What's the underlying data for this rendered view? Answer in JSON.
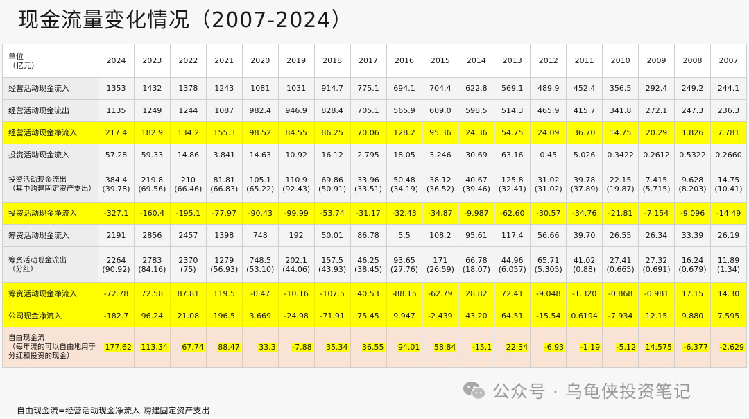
{
  "title": "现金流量变化情况（2007-2024）",
  "table": {
    "unit_label": "单位\n（亿元）",
    "years": [
      "2024",
      "2023",
      "2022",
      "2021",
      "2020",
      "2019",
      "2018",
      "2017",
      "2016",
      "2015",
      "2014",
      "2013",
      "2012",
      "2011",
      "2010",
      "2009",
      "2008",
      "2007"
    ],
    "rows": [
      {
        "label": "经营活动现金流入",
        "style": "norm",
        "values": [
          "1353",
          "1432",
          "1378",
          "1243",
          "1081",
          "1031",
          "914.7",
          "775.1",
          "694.1",
          "704.4",
          "622.8",
          "569.1",
          "489.9",
          "452.4",
          "356.5",
          "292.4",
          "249.2",
          "244.1"
        ]
      },
      {
        "label": "经营活动现金流出",
        "style": "norm",
        "values": [
          "1135",
          "1249",
          "1244",
          "1087",
          "982.4",
          "946.9",
          "828.4",
          "705.1",
          "565.9",
          "609.0",
          "598.5",
          "514.3",
          "465.9",
          "415.7",
          "341.8",
          "272.1",
          "247.3",
          "236.3"
        ]
      },
      {
        "label": "经营活动现金净流入",
        "style": "yellow",
        "values": [
          "217.4",
          "182.9",
          "134.2",
          "155.3",
          "98.52",
          "84.55",
          "86.25",
          "70.06",
          "128.2",
          "95.36",
          "24.36",
          "54.75",
          "24.09",
          "36.70",
          "14.75",
          "20.29",
          "1.826",
          "7.781"
        ]
      },
      {
        "label": "投资活动现金流入",
        "style": "norm",
        "values": [
          "57.28",
          "59.33",
          "14.86",
          "3.841",
          "14.63",
          "10.92",
          "16.12",
          "2.795",
          "18.05",
          "3.246",
          "30.69",
          "63.16",
          "0.45",
          "5.026",
          "0.3422",
          "0.2612",
          "0.5322",
          "0.2660"
        ]
      },
      {
        "label": "投资活动现金流出\n（其中购建固定资产支出）",
        "style": "tall",
        "values": [
          "384.4\n(39.78)",
          "219.8\n(69.56)",
          "210\n(66.46)",
          "81.81\n(66.83)",
          "105.1\n(65.22)",
          "110.9\n(92.43)",
          "69.86\n(50.91)",
          "33.96\n(33.51)",
          "50.48\n(34.19)",
          "38.12\n(36.52)",
          "40.67\n(39.46)",
          "125.8\n(32.41)",
          "31.02\n(31.02)",
          "39.78\n(37.89)",
          "22.15\n(19.87)",
          "7.415\n(5.715)",
          "9.628\n(8.203)",
          "14.75\n(10.41)"
        ]
      },
      {
        "label": "投资活动现金净流入",
        "style": "yellow",
        "values": [
          "-327.1",
          "-160.4",
          "-195.1",
          "-77.97",
          "-90.43",
          "-99.99",
          "-53.74",
          "-31.17",
          "-32.43",
          "-34.87",
          "-9.987",
          "-62.60",
          "-30.57",
          "-34.76",
          "-21.81",
          "-7.154",
          "-9.096",
          "-14.49"
        ]
      },
      {
        "label": "筹资活动现金流入",
        "style": "norm",
        "values": [
          "2191",
          "2856",
          "2457",
          "1398",
          "748",
          "192",
          "50.01",
          "86.78",
          "5.5",
          "108.2",
          "95.61",
          "117.4",
          "56.66",
          "39.70",
          "26.55",
          "26.34",
          "33.39",
          "26.19"
        ]
      },
      {
        "label": "筹资活动现金流出\n（分红）",
        "style": "tall",
        "values": [
          "2264\n(90.92)",
          "2783\n(84.16)",
          "2370\n(75)",
          "1279\n(56.93)",
          "748.5\n(53.10)",
          "202.1\n(44.06)",
          "157.5\n(43.93)",
          "46.25\n(38.45)",
          "93.65\n(27.76)",
          "171\n(26.59)",
          "66.78\n(18.07)",
          "44.96\n(6.057)",
          "65.71\n(5.305)",
          "41.02\n(0.88)",
          "27.41\n(0.665)",
          "27.32\n(0.691)",
          "16.24\n(0.679)",
          "11.89\n(1.34)"
        ]
      },
      {
        "label": "筹资活动现金净流入",
        "style": "yellow",
        "values": [
          "-72.78",
          "72.58",
          "87.81",
          "119.5",
          "-0.47",
          "-10.16",
          "-107.5",
          "40.53",
          "-88.15",
          "-62.79",
          "28.82",
          "72.41",
          "-9.048",
          "-1.320",
          "-0.868",
          "-0.981",
          "17.15",
          "14.30"
        ]
      },
      {
        "label": "公司现金净流入",
        "style": "yellow",
        "values": [
          "-182.7",
          "96.24",
          "21.08",
          "196.5",
          "3.669",
          "-24.98",
          "-71.91",
          "75.45",
          "9.947",
          "-2.439",
          "43.20",
          "64.51",
          "-15.54",
          "0.6194",
          "-7.934",
          "12.15",
          "9.880",
          "7.595"
        ]
      },
      {
        "label": "自由现金流\n（每年流的可以自由地用于分红和投资的现金）",
        "style": "free",
        "values": [
          "177.62",
          "113.34",
          "67.74",
          "88.47",
          "33.3",
          "-7.88",
          "35.34",
          "36.55",
          "94.01",
          "58.84",
          "-15.1",
          "22.34",
          "-6.93",
          "-1.19",
          "-5.12",
          "14.575",
          "-6.377",
          "-2.629"
        ]
      }
    ]
  },
  "watermark": {
    "text": "公众号 · 乌龟侠投资笔记",
    "icon": "wechat-icon"
  },
  "footnote": "自由现金流=经营活动现金净流入-购建固定资产支出",
  "colors": {
    "highlight": "#ffff00",
    "free_cash_bg": "#f9e3d4"
  }
}
